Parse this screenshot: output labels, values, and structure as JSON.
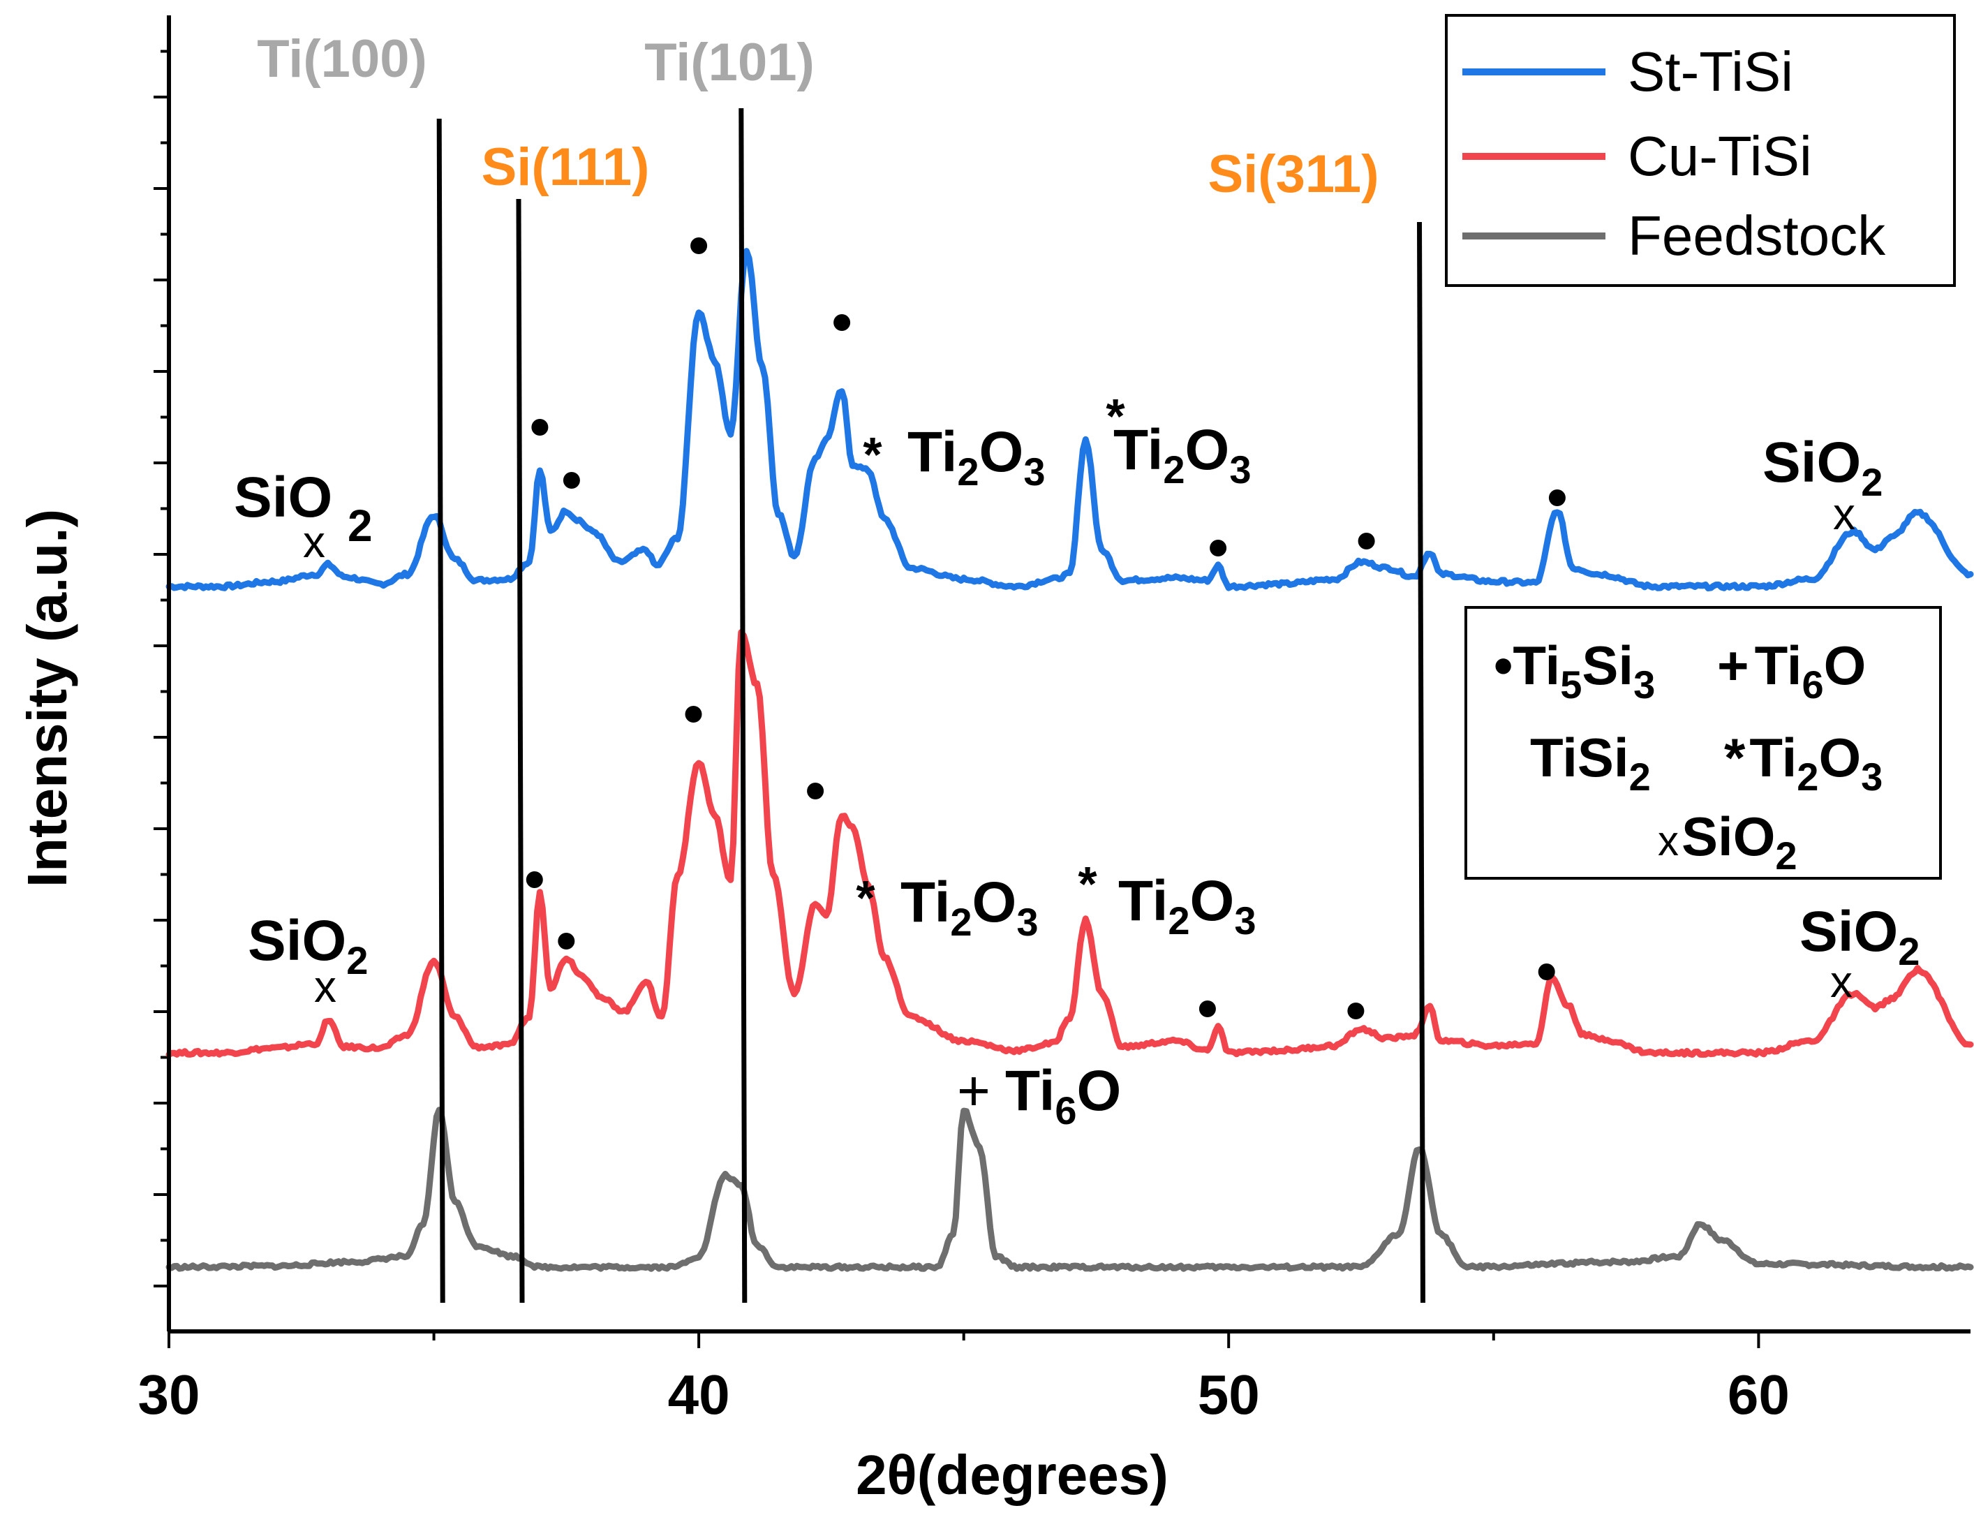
{
  "chart_data": {
    "type": "line",
    "title": "",
    "xlabel": "2θ(degrees)",
    "ylabel": "Intensity (a.u.)",
    "xlim": [
      30,
      64
    ],
    "xticks": [
      30,
      40,
      50,
      60
    ],
    "xtick_labels": [
      "30",
      "40",
      "50",
      "60"
    ],
    "colors": {
      "st": "#1f77e6",
      "cu": "#f2444c",
      "feed": "#6e6e6e",
      "gray_label": "#a8a8a8",
      "orange_label": "#ff8c1a",
      "axis": "#000000"
    },
    "legend": {
      "position": "top-right",
      "entries": [
        {
          "name": "St-TiSi",
          "color": "#1f77e6"
        },
        {
          "name": "Cu-TiSi",
          "color": "#f2444c"
        },
        {
          "name": "Feedstock",
          "color": "#6e6e6e"
        }
      ]
    },
    "series": [
      {
        "name": "St-TiSi",
        "color": "#1f77e6",
        "points": [
          [
            30,
            0.0
          ],
          [
            31,
            0.0
          ],
          [
            32,
            0.04
          ],
          [
            32.8,
            0.1
          ],
          [
            33.0,
            0.18
          ],
          [
            33.3,
            0.08
          ],
          [
            34,
            0.02
          ],
          [
            34.5,
            0.1
          ],
          [
            35.0,
            0.58
          ],
          [
            35.4,
            0.22
          ],
          [
            35.8,
            0.05
          ],
          [
            36.4,
            0.06
          ],
          [
            36.8,
            0.2
          ],
          [
            37.0,
            0.95
          ],
          [
            37.2,
            0.45
          ],
          [
            37.5,
            0.62
          ],
          [
            37.7,
            0.55
          ],
          [
            38.0,
            0.45
          ],
          [
            38.5,
            0.2
          ],
          [
            39.0,
            0.3
          ],
          [
            39.2,
            0.17
          ],
          [
            39.6,
            0.4
          ],
          [
            40.0,
            2.25
          ],
          [
            40.3,
            1.85
          ],
          [
            40.6,
            1.25
          ],
          [
            40.9,
            2.75
          ],
          [
            41.2,
            1.8
          ],
          [
            41.5,
            0.6
          ],
          [
            41.8,
            0.25
          ],
          [
            42.2,
            1.05
          ],
          [
            42.4,
            1.2
          ],
          [
            42.7,
            1.6
          ],
          [
            42.9,
            1.0
          ],
          [
            43.2,
            0.95
          ],
          [
            43.5,
            0.55
          ],
          [
            44.0,
            0.15
          ],
          [
            45.0,
            0.06
          ],
          [
            46.0,
            0.0
          ],
          [
            46.7,
            0.06
          ],
          [
            47.0,
            0.1
          ],
          [
            47.3,
            1.2
          ],
          [
            47.6,
            0.3
          ],
          [
            48.0,
            0.05
          ],
          [
            49.0,
            0.07
          ],
          [
            49.6,
            0.05
          ],
          [
            49.8,
            0.17
          ],
          [
            50.0,
            0.0
          ],
          [
            51.0,
            0.02
          ],
          [
            52.0,
            0.06
          ],
          [
            52.5,
            0.2
          ],
          [
            53.0,
            0.15
          ],
          [
            53.5,
            0.08
          ],
          [
            53.8,
            0.28
          ],
          [
            54.0,
            0.1
          ],
          [
            55.0,
            0.04
          ],
          [
            55.8,
            0.03
          ],
          [
            56.2,
            0.62
          ],
          [
            56.5,
            0.15
          ],
          [
            57.0,
            0.1
          ],
          [
            58.0,
            0.0
          ],
          [
            60.0,
            0.0
          ],
          [
            61.0,
            0.06
          ],
          [
            61.8,
            0.45
          ],
          [
            62.2,
            0.3
          ],
          [
            62.5,
            0.4
          ],
          [
            63.0,
            0.6
          ],
          [
            64,
            0.1
          ]
        ]
      },
      {
        "name": "Cu-TiSi",
        "color": "#f2444c",
        "points": [
          [
            30,
            0.0
          ],
          [
            31,
            0.0
          ],
          [
            32,
            0.04
          ],
          [
            32.8,
            0.08
          ],
          [
            33.0,
            0.28
          ],
          [
            33.3,
            0.05
          ],
          [
            34,
            0.04
          ],
          [
            34.5,
            0.15
          ],
          [
            35.0,
            0.77
          ],
          [
            35.4,
            0.3
          ],
          [
            35.8,
            0.05
          ],
          [
            36.4,
            0.06
          ],
          [
            36.8,
            0.3
          ],
          [
            37.0,
            1.35
          ],
          [
            37.2,
            0.55
          ],
          [
            37.5,
            0.8
          ],
          [
            37.8,
            0.65
          ],
          [
            38.2,
            0.45
          ],
          [
            38.6,
            0.35
          ],
          [
            39.0,
            0.6
          ],
          [
            39.3,
            0.3
          ],
          [
            39.6,
            1.5
          ],
          [
            40.0,
            2.45
          ],
          [
            40.3,
            2.0
          ],
          [
            40.6,
            1.45
          ],
          [
            40.8,
            3.55
          ],
          [
            41.1,
            3.1
          ],
          [
            41.4,
            1.5
          ],
          [
            41.8,
            0.5
          ],
          [
            42.2,
            1.25
          ],
          [
            42.4,
            1.15
          ],
          [
            42.7,
            2.0
          ],
          [
            42.9,
            1.9
          ],
          [
            43.2,
            1.4
          ],
          [
            43.5,
            0.8
          ],
          [
            44.0,
            0.3
          ],
          [
            45.0,
            0.1
          ],
          [
            46.0,
            0.02
          ],
          [
            46.7,
            0.08
          ],
          [
            47.0,
            0.3
          ],
          [
            47.3,
            1.12
          ],
          [
            47.6,
            0.5
          ],
          [
            48.0,
            0.05
          ],
          [
            49.0,
            0.1
          ],
          [
            49.6,
            0.02
          ],
          [
            49.8,
            0.22
          ],
          [
            50.0,
            0.0
          ],
          [
            51.0,
            0.02
          ],
          [
            52.0,
            0.06
          ],
          [
            52.5,
            0.2
          ],
          [
            53.0,
            0.12
          ],
          [
            53.5,
            0.15
          ],
          [
            53.8,
            0.38
          ],
          [
            54.0,
            0.1
          ],
          [
            55.0,
            0.06
          ],
          [
            55.8,
            0.08
          ],
          [
            56.1,
            0.63
          ],
          [
            56.4,
            0.4
          ],
          [
            56.7,
            0.15
          ],
          [
            57.0,
            0.12
          ],
          [
            58.0,
            0.0
          ],
          [
            60.0,
            0.0
          ],
          [
            61.0,
            0.1
          ],
          [
            61.8,
            0.5
          ],
          [
            62.2,
            0.38
          ],
          [
            62.5,
            0.45
          ],
          [
            63.0,
            0.7
          ],
          [
            64,
            0.07
          ]
        ]
      },
      {
        "name": "Feedstock",
        "color": "#6e6e6e",
        "points": [
          [
            30,
            0.0
          ],
          [
            32,
            0.01
          ],
          [
            33.5,
            0.05
          ],
          [
            34.5,
            0.1
          ],
          [
            34.8,
            0.4
          ],
          [
            35.1,
            1.45
          ],
          [
            35.4,
            0.6
          ],
          [
            35.8,
            0.2
          ],
          [
            36.5,
            0.1
          ],
          [
            37,
            0.0
          ],
          [
            39.5,
            0.0
          ],
          [
            40,
            0.1
          ],
          [
            40.5,
            0.85
          ],
          [
            40.8,
            0.75
          ],
          [
            41.1,
            0.2
          ],
          [
            41.5,
            0.0
          ],
          [
            44.5,
            0.0
          ],
          [
            44.8,
            0.3
          ],
          [
            45.0,
            1.45
          ],
          [
            45.3,
            1.1
          ],
          [
            45.6,
            0.1
          ],
          [
            46,
            0.0
          ],
          [
            52.5,
            0.0
          ],
          [
            53.2,
            0.3
          ],
          [
            53.6,
            1.1
          ],
          [
            54.0,
            0.3
          ],
          [
            54.5,
            0.0
          ],
          [
            57.5,
            0.05
          ],
          [
            58.5,
            0.1
          ],
          [
            58.9,
            0.4
          ],
          [
            59.3,
            0.25
          ],
          [
            60,
            0.03
          ],
          [
            64,
            0.0
          ]
        ]
      }
    ],
    "reference_lines": [
      {
        "label": "Ti(100)",
        "x": 35.1,
        "color": "#a8a8a8"
      },
      {
        "label": "Si(111)",
        "x": 36.6,
        "color": "#ff8c1a"
      },
      {
        "label": "Ti(101)",
        "x": 40.8,
        "color": "#a8a8a8"
      },
      {
        "label": "Si(311)",
        "x": 53.6,
        "color": "#ff8c1a"
      }
    ],
    "annotations": {
      "st_sio2_left": {
        "text": "SiO",
        "sub": "2",
        "marker": "x"
      },
      "st_sio2_right": {
        "text": "SiO",
        "sub": "2",
        "marker": "x"
      },
      "st_ti2o3": {
        "parts": [
          "Ti",
          "2",
          "O",
          "3"
        ],
        "marker": "*"
      },
      "cu_sio2_left": {
        "text": "SiO",
        "sub": "2",
        "marker": "x"
      },
      "cu_sio2_right": {
        "text": "SiO",
        "sub": "2",
        "marker": "x"
      },
      "cu_ti2o3": {
        "parts": [
          "Ti",
          "2",
          "O",
          "3"
        ],
        "marker": "*"
      },
      "feed_ti6o": {
        "marker": "+",
        "parts": [
          "Ti",
          "6",
          "O"
        ]
      }
    },
    "phase_key": {
      "ti5si3": {
        "parts": [
          "Ti",
          "5",
          "Si",
          "3"
        ],
        "marker": "•"
      },
      "ti6o": {
        "parts": [
          "Ti",
          "6",
          "O"
        ],
        "marker": "+"
      },
      "tisi2": {
        "parts": [
          "TiSi",
          "2"
        ]
      },
      "ti2o3": {
        "parts": [
          "Ti",
          "2",
          "O",
          "3"
        ],
        "marker": "*"
      },
      "sio2": {
        "parts": [
          "SiO",
          "2"
        ],
        "marker": "x"
      }
    }
  }
}
